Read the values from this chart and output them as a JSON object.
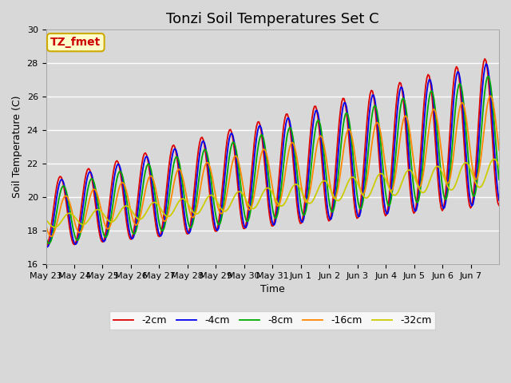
{
  "title": "Tonzi Soil Temperatures Set C",
  "xlabel": "Time",
  "ylabel": "Soil Temperature (C)",
  "ylim": [
    16,
    30
  ],
  "bg_color": "#d8d8d8",
  "grid_color": "#ffffff",
  "annotation_label": "TZ_fmet",
  "annotation_color": "#cc0000",
  "annotation_bg": "#ffffcc",
  "annotation_border": "#ccaa00",
  "series": [
    {
      "label": "-2cm",
      "color": "#dd0000",
      "lw": 1.3
    },
    {
      "label": "-4cm",
      "color": "#0000ee",
      "lw": 1.3
    },
    {
      "label": "-8cm",
      "color": "#00aa00",
      "lw": 1.3
    },
    {
      "label": "-16cm",
      "color": "#ff8800",
      "lw": 1.3
    },
    {
      "label": "-32cm",
      "color": "#cccc00",
      "lw": 1.3
    }
  ],
  "xtick_labels": [
    "May 23",
    "May 24",
    "May 25",
    "May 26",
    "May 27",
    "May 28",
    "May 29",
    "May 30",
    "May 31",
    "Jun 1",
    "Jun 2",
    "Jun 3",
    "Jun 4",
    "Jun 5",
    "Jun 6",
    "Jun 7"
  ],
  "title_fontsize": 13,
  "axis_fontsize": 9,
  "tick_fontsize": 8,
  "legend_fontsize": 9
}
